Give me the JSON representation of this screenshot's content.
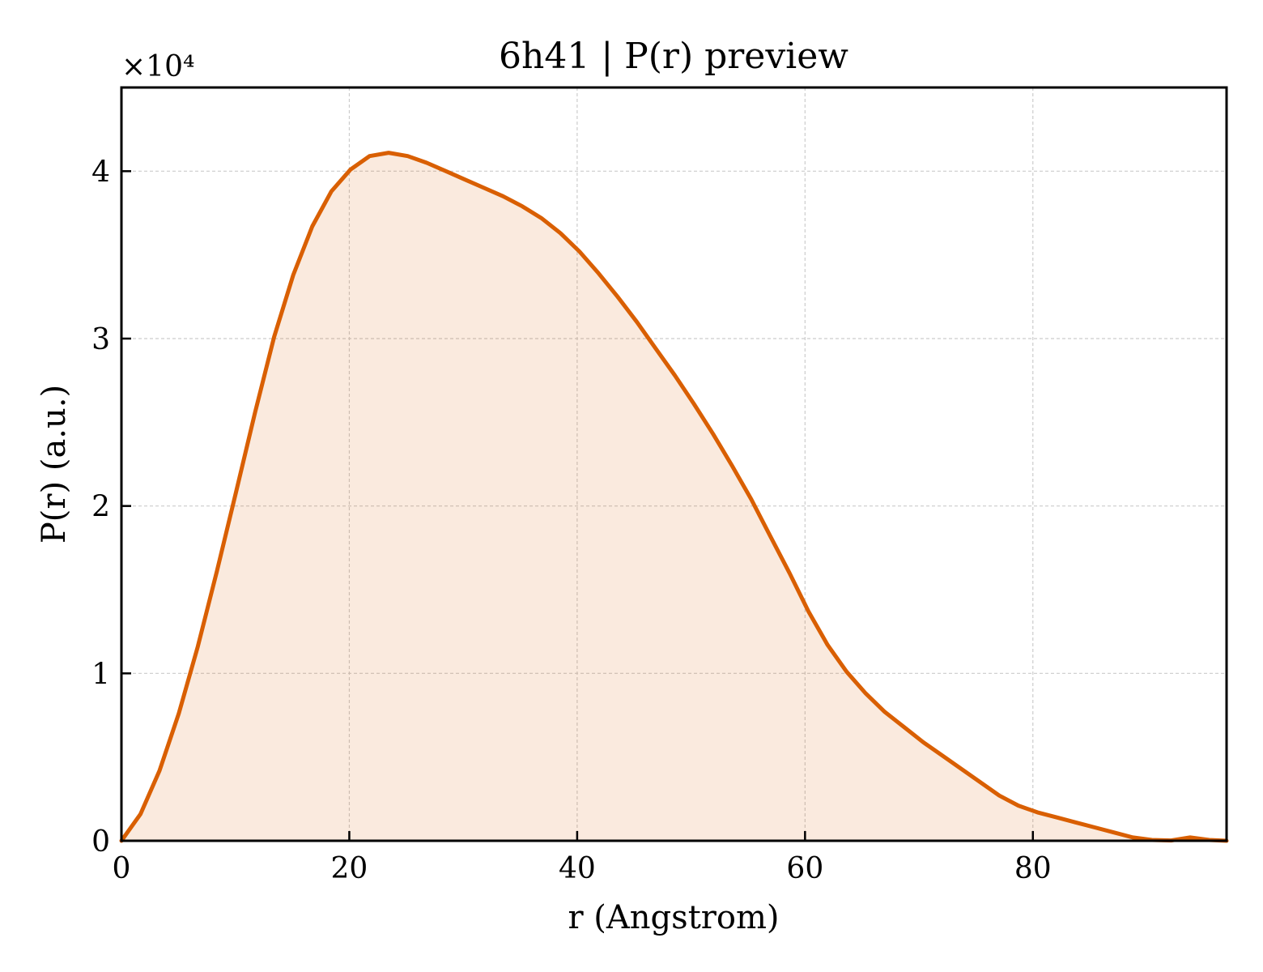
{
  "chart_data": {
    "type": "area",
    "title": "6h41 | P(r) preview",
    "xlabel": "r (Angstrom)",
    "ylabel": "P(r) (a.u.)",
    "y_multiplier_label": "×10⁴",
    "xlim": [
      0,
      97
    ],
    "ylim": [
      0,
      45000
    ],
    "x_ticks": [
      0,
      20,
      40,
      60,
      80
    ],
    "x_tick_labels": [
      "0",
      "20",
      "40",
      "60",
      "80"
    ],
    "y_ticks": [
      0,
      10000,
      20000,
      30000,
      40000
    ],
    "y_tick_labels": [
      "0",
      "1",
      "2",
      "3",
      "4"
    ],
    "grid": true,
    "colors": {
      "line": "#d95f02",
      "fill": "#d95f02",
      "grid": "#cccccc"
    },
    "series": [
      {
        "x": [
          0,
          1.68,
          3.35,
          5.03,
          6.7,
          8.38,
          10.05,
          11.73,
          13.4,
          15.08,
          16.75,
          18.43,
          20.1,
          21.78,
          23.45,
          25.13,
          26.8,
          28.48,
          30.15,
          31.83,
          33.5,
          35.18,
          36.85,
          38.53,
          40.2,
          41.88,
          43.55,
          45.23,
          46.9,
          48.58,
          50.25,
          51.93,
          53.6,
          55.28,
          56.95,
          58.63,
          60.3,
          61.98,
          63.65,
          65.33,
          67.0,
          68.68,
          70.35,
          72.03,
          73.7,
          75.38,
          77.05,
          78.73,
          80.4,
          82.08,
          83.75,
          85.43,
          87.1,
          88.78,
          90.45,
          92.13,
          93.8,
          95.48,
          97.0
        ],
        "y": [
          0,
          1600,
          4200,
          7600,
          11600,
          16100,
          20800,
          25600,
          30100,
          33800,
          36700,
          38800,
          40100,
          40900,
          41100,
          40900,
          40500,
          40000,
          39500,
          39000,
          38500,
          37900,
          37200,
          36300,
          35200,
          33900,
          32500,
          31000,
          29400,
          27800,
          26100,
          24300,
          22400,
          20400,
          18200,
          16000,
          13700,
          11700,
          10100,
          8800,
          7700,
          6800,
          5900,
          5100,
          4300,
          3500,
          2700,
          2100,
          1700,
          1400,
          1100,
          800,
          500,
          200,
          50,
          20,
          200,
          50,
          0
        ]
      }
    ]
  }
}
